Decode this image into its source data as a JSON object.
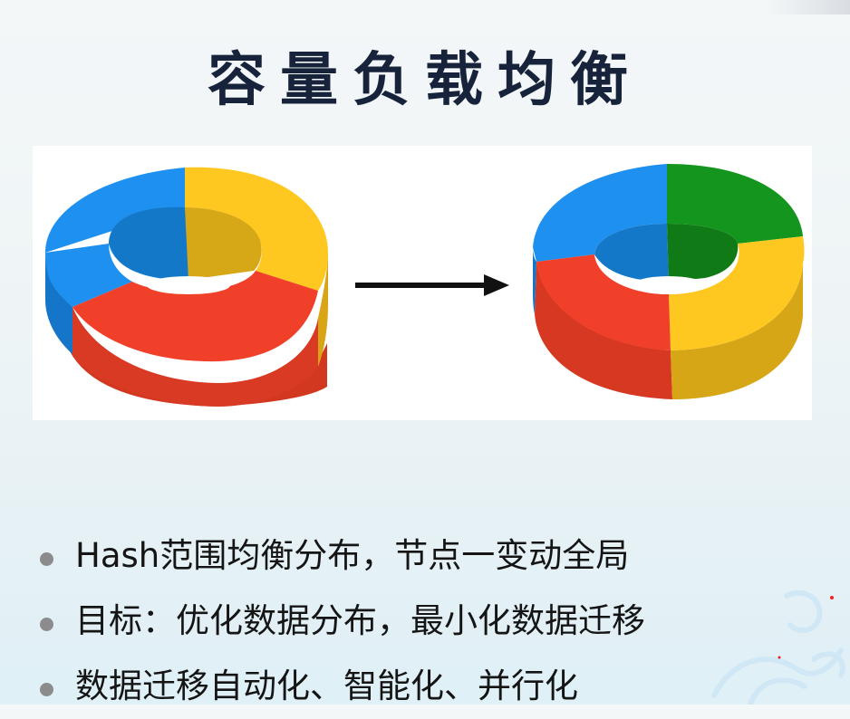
{
  "slide": {
    "title": "容量负载均衡",
    "bullets": [
      "Hash范围均衡分布，节点一变动全局",
      "目标：优化数据分布，最小化数据迁移",
      "数据迁移自动化、智能化、并行化"
    ]
  },
  "figure": {
    "colors": {
      "blue": "#1e90f0",
      "yellow": "#ffc820",
      "red": "#f0402a",
      "green": "#14961e"
    },
    "rings": [
      {
        "segments": [
          "blue",
          "yellow",
          "red"
        ]
      },
      {
        "segments": [
          "blue",
          "green",
          "yellow",
          "red"
        ]
      }
    ],
    "arrow": "right-arrow"
  }
}
